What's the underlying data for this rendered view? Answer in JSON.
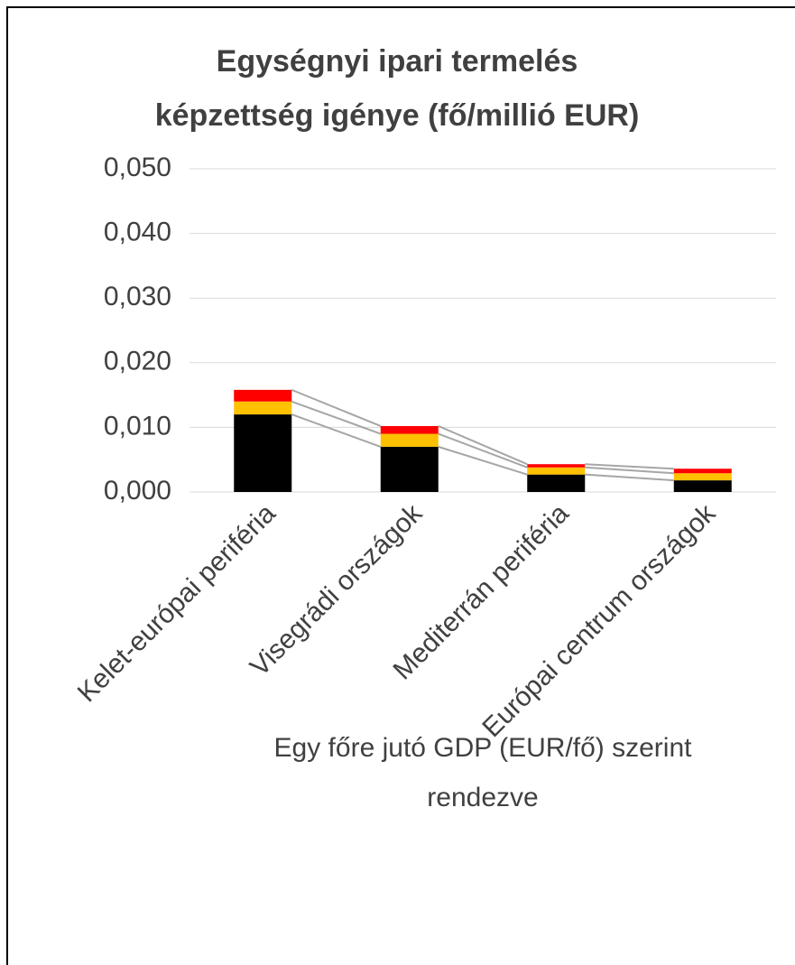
{
  "chart_data": {
    "type": "stacked_bar",
    "title": [
      "Egységnyi ipari termelés",
      "képzettség igénye (fő/millió EUR)"
    ],
    "x_label": [
      "Egy főre jutó GDP (EUR/fő) szerint",
      "rendezve"
    ],
    "categories": [
      "Kelet-európai periféria",
      "Visegrádi országok",
      "Mediterrán periféria",
      "Európai centrum országok"
    ],
    "series": [
      {
        "color": "#000000",
        "values": [
          0.012,
          0.007,
          0.0027,
          0.0018
        ]
      },
      {
        "color": "#ffc000",
        "values": [
          0.002,
          0.002,
          0.0011,
          0.0011
        ]
      },
      {
        "color": "#ff0000",
        "values": [
          0.0018,
          0.0012,
          0.0005,
          0.0007
        ]
      }
    ],
    "ylim": [
      0,
      0.05
    ],
    "yticks": [
      {
        "value": 0,
        "label": "0,000"
      },
      {
        "value": 0.01,
        "label": "0,010"
      },
      {
        "value": 0.02,
        "label": "0,020"
      },
      {
        "value": 0.03,
        "label": "0,030"
      },
      {
        "value": 0.04,
        "label": "0,040"
      },
      {
        "value": 0.05,
        "label": "0,050"
      }
    ],
    "grid": true,
    "series_lines": true
  }
}
